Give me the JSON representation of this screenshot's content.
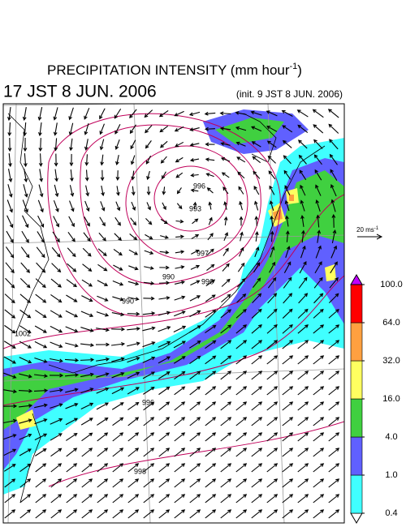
{
  "header": {
    "title": "PRECIPITATION INTENSITY (mm hour",
    "title_sup": "-1",
    "title_end": ")",
    "valid_time": "17 JST 8 JUN. 2006",
    "init_time": "(init. 9 JST 8 JUN. 2006)"
  },
  "scale": {
    "label": "20 ms",
    "sup": "-1"
  },
  "contour_labels": [
    "996",
    "993",
    "997",
    "990",
    "996",
    "1002",
    "990",
    "996",
    "998"
  ],
  "colorbar": {
    "levels": [
      {
        "value": 0.4,
        "label": "0.4"
      },
      {
        "value": 1,
        "label": "1.0"
      },
      {
        "value": 4,
        "label": "4.0"
      },
      {
        "value": 16,
        "label": "16.0"
      },
      {
        "value": 32,
        "label": "32.0"
      },
      {
        "value": 64,
        "label": "64.0"
      },
      {
        "value": 100,
        "label": "100.0"
      }
    ],
    "colors": [
      "#ffffff",
      "#40ffff",
      "#6060ff",
      "#40d040",
      "#ffff60",
      "#ffa040",
      "#ff0000",
      "#c000ff"
    ]
  }
}
